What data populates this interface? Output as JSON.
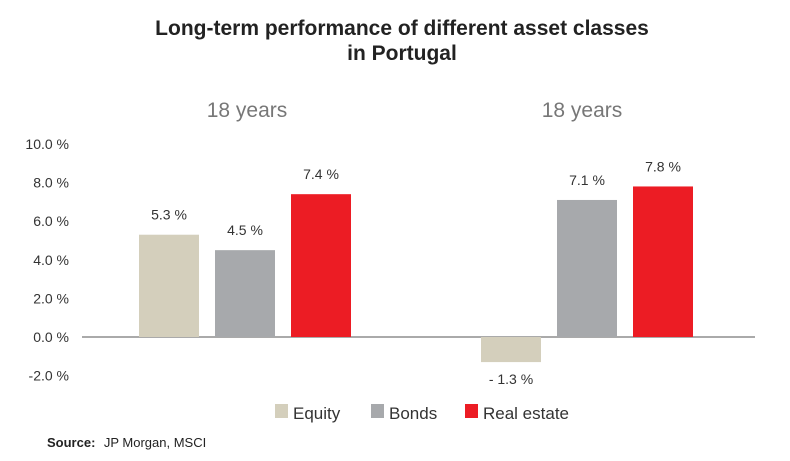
{
  "chart_data": {
    "type": "bar",
    "title_lines": [
      "Long-term performance of different asset classes",
      "in Portugal"
    ],
    "categories": [
      "18 years",
      "18 years"
    ],
    "series": [
      {
        "name": "Equity",
        "values": [
          5.3,
          -1.3
        ],
        "color": "#d4cfbc"
      },
      {
        "name": "Bonds",
        "values": [
          4.5,
          7.1
        ],
        "color": "#a7a9ac"
      },
      {
        "name": "Real estate",
        "values": [
          7.4,
          7.8
        ],
        "color": "#ec1c24"
      }
    ],
    "data_labels": [
      [
        "5.3 %",
        "4.5 %",
        "7.4 %"
      ],
      [
        "- 1.3 %",
        "7.1 %",
        "7.8 %"
      ]
    ],
    "y_ticks": [
      10,
      8,
      6,
      4,
      2,
      0,
      -2
    ],
    "y_tick_labels": [
      "10.0 %",
      "8.0 %",
      "6.0 %",
      "4.0 %",
      "2.0 %",
      "0.0 %",
      "-2.0 %"
    ],
    "ylim": [
      -2,
      10
    ],
    "grid": false,
    "legend_position": "bottom"
  },
  "source": {
    "label": "Source:",
    "text": "JP Morgan, MSCI"
  }
}
